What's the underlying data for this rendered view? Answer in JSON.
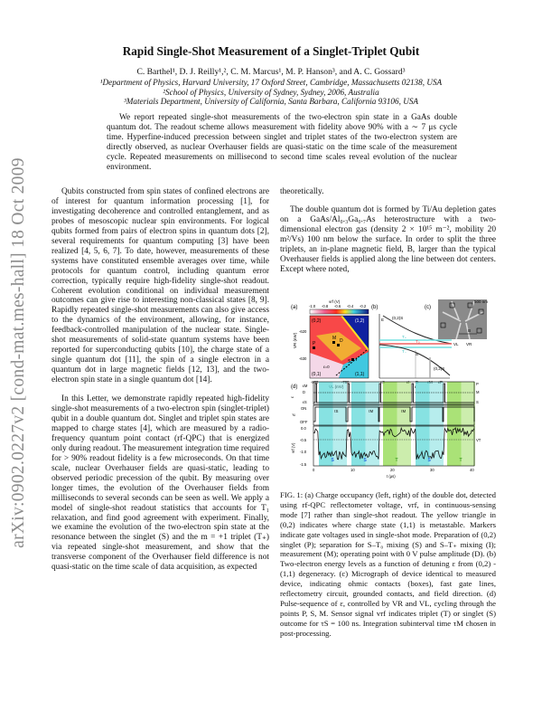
{
  "arxiv_stamp": "arXiv:0902.0227v2  [cond-mat.mes-hall]  18 Oct 2009",
  "title": "Rapid Single-Shot Measurement of a Singlet-Triplet Qubit",
  "authors": "C. Barthel¹, D. J. Reilly¹,², C. M. Marcus¹, M. P. Hanson³, and A. C. Gossard³",
  "affiliations": [
    "¹Department of Physics, Harvard University, 17 Oxford Street, Cambridge, Massachusetts 02138, USA",
    "²School of Physics, University of Sydney, Sydney, 2006, Australia",
    "³Materials Department, University of California, Santa Barbara, California 93106, USA"
  ],
  "abstract": "We report repeated single-shot measurements of the two-electron spin state in a GaAs double quantum dot. The readout scheme allows measurement with fidelity above 90% with a ∼ 7 μs cycle time. Hyperfine-induced precession between singlet and triplet states of the two-electron system are directly observed, as nuclear Overhauser fields are quasi-static on the time scale of the measurement cycle. Repeated measurements on millisecond to second time scales reveal evolution of the nuclear environment.",
  "left_column": [
    "Qubits constructed from spin states of confined electrons are of interest for quantum information processing [1], for investigating decoherence and controlled entanglement, and as probes of mesoscopic nuclear spin environments. For logical qubits formed from pairs of electron spins in quantum dots [2], several requirements for quantum computing [3] have been realized [4, 5, 6, 7]. To date, however, measurements of these systems have constituted ensemble averages over time, while protocols for quantum control, including quantum error correction, typically require high-fidelity single-shot readout. Coherent evolution conditional on individual measurement outcomes can give rise to interesting non-classical states [8, 9]. Rapidly repeated single-shot measurements can also give access to the dynamics of the environment, allowing, for instance, feedback-controlled manipulation of the nuclear state. Single-shot measurements of solid-state quantum systems have been reported for superconducting qubits [10], the charge state of a single quantum dot [11], the spin of a single electron in a quantum dot in large magnetic fields [12, 13], and the two-electron spin state in a single quantum dot [14].",
    "In this Letter, we demonstrate rapidly repeated high-fidelity single-shot measurements of a two-electron spin (singlet-triplet) qubit in a double quantum dot. Singlet and triplet spin states are mapped to charge states [4], which are measured by a radio-frequency quantum point contact (rf-QPC) that is energized only during readout. The measurement integration time required for > 90% readout fidelity is a few microseconds. On that time scale, nuclear Overhauser fields are quasi-static, leading to observed periodic precession of the qubit. By measuring over longer times, the evolution of the Overhauser fields from milliseconds to several seconds can be seen as well. We apply a model of single-shot readout statistics that accounts for T₁ relaxation, and find good agreement with experiment. Finally, we examine the evolution of the two-electron spin state at the resonance between the singlet (S) and the m = +1 triplet (T₊) via repeated single-shot measurement, and show that the transverse component of the Overhauser field difference is not quasi-static on the time scale of data acquisition, as expected"
  ],
  "right_column": [
    "theoretically.",
    "The double quantum dot is formed by Ti/Au depletion gates on a GaAs/Al₀.₃Ga₀.₇As heterostructure with a two-dimensional electron gas (density 2 × 10¹⁵ m⁻², mobility 20 m²/Vs) 100 nm below the surface. In order to split the three triplets, an in-plane magnetic field, B, larger than the typical Overhauser fields is applied along the line between dot centers. Except where noted,"
  ],
  "figure": {
    "panel_labels": [
      "(a)",
      "(b)",
      "(c)",
      "(d)"
    ],
    "a": {
      "colorbar_label": "vrf (V)",
      "colorbar_ticks": [
        "-1.0",
        "-0.8",
        "-0.6",
        "-0.4",
        "-0.2"
      ],
      "regions": [
        "(0,2)",
        "(1,2)",
        "(0,1)",
        "(1,1)"
      ],
      "markers": [
        "P",
        "M",
        "D",
        "S",
        "I"
      ],
      "epsilon_zero": "ε=0",
      "y_label": "VR (mV)",
      "y_ticks": [
        "-620",
        "-630"
      ],
      "x_label": "VL (mV)",
      "x_ticks": [
        "-800",
        "-780"
      ]
    },
    "b": {
      "y_label": "E",
      "levels": [
        "(0,2)S",
        "T₊",
        "T₀",
        "T₋",
        "S",
        "(0,2)S"
      ],
      "x_ticks": [
        "εS",
        "εI",
        "D",
        "εM",
        "εP"
      ],
      "x_label": "ε"
    },
    "c": {
      "scale": "500 nm",
      "field": "B",
      "gates": [
        "VL",
        "VR"
      ]
    },
    "d": {
      "eps_ticks": [
        "εM",
        "D",
        "εS"
      ],
      "eps_label": "ε",
      "eps_points": [
        "P",
        "M",
        "S"
      ],
      "rf_label": "rf",
      "rf_ticks": [
        "ON",
        "OFF"
      ],
      "tau_labels": [
        "τS",
        "τM",
        "τM"
      ],
      "y_label": "vrf (V)",
      "y_ticks": [
        "0.0",
        "-0.5",
        "-1.0",
        "-1.5"
      ],
      "threshold_label": "VT",
      "x_label": "t (μs)",
      "x_ticks": [
        "0",
        "10",
        "20",
        "30",
        "40"
      ],
      "outcomes": [
        "S",
        "S",
        "T",
        "S",
        "T"
      ],
      "colors": {
        "singlet": "#5fd8d8",
        "triplet": "#8ed84a",
        "s_text": "#2a6ae0",
        "t_text": "#3fa020"
      }
    }
  },
  "caption": "FIG. 1: (a) Charge occupancy (left, right) of the double dot, detected using rf-QPC reflectometer voltage, vrf, in continuous-sensing mode [7] rather than single-shot readout. The yellow triangle in (0,2) indicates where charge state (1,1) is metastable. Markers indicate gate voltages used in single-shot mode. Preparation of (0,2) singlet (P); separation for S–T₀ mixing (S) and S–T₊ mixing (I); measurement (M); operating point with 0 V pulse amplitude (D). (b) Two-electron energy levels as a function of detuning ε from (0,2) - (1,1) degeneracy. (c) Micrograph of device identical to measured device, indicating ohmic contacts (boxes), fast gate lines, reflectometry circuit, grounded contacts, and field direction. (d) Pulse-sequence of ε, controlled by VR and VL, cycling through the points P, S, M. Sensor signal vrf indicates triplet (T) or singlet (S) outcome for τS = 100 ns. Integration subinterval time τM chosen in post-processing."
}
